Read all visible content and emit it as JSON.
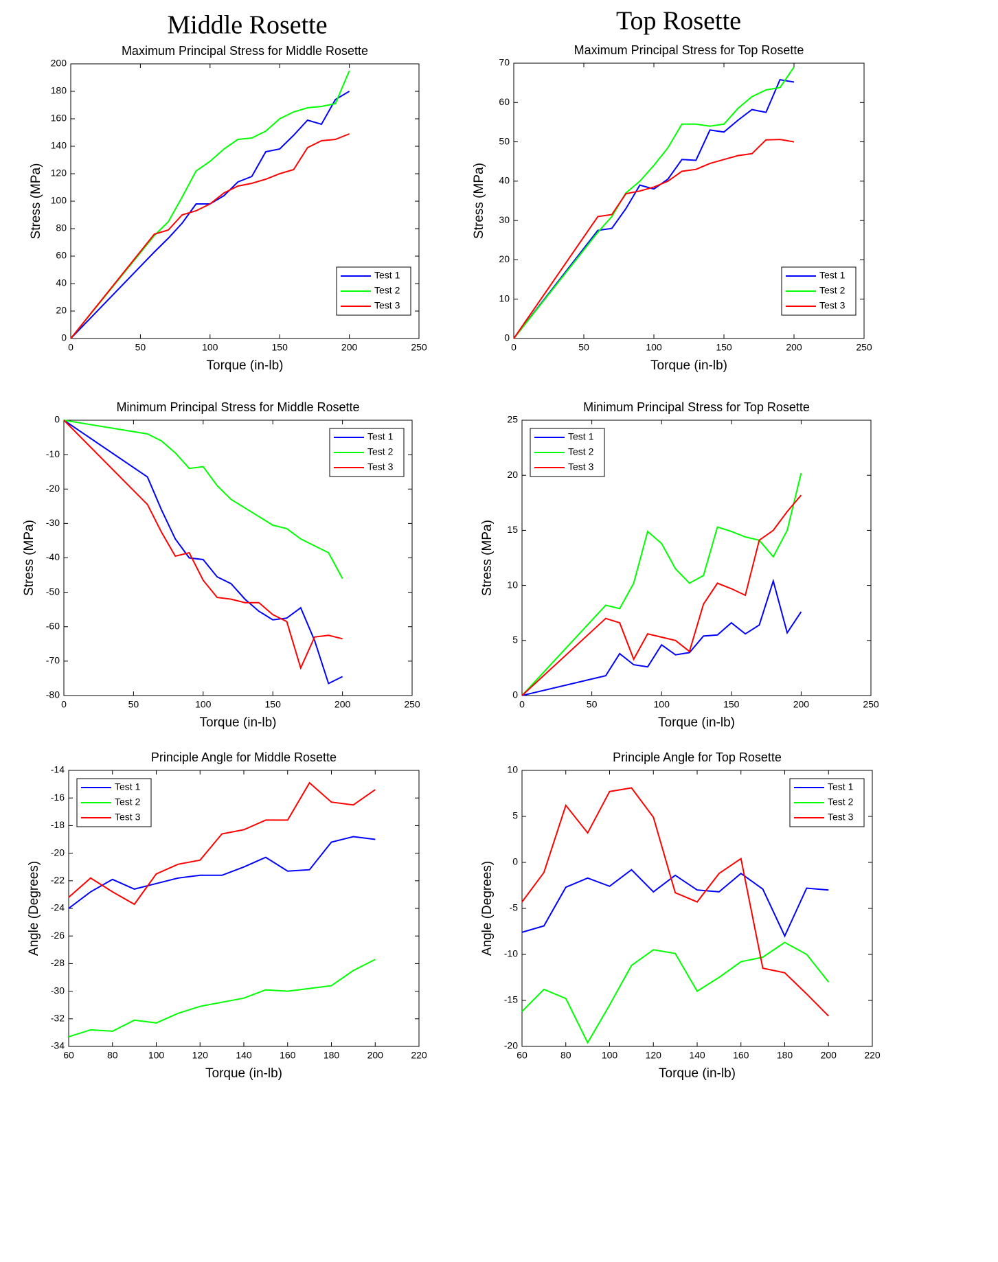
{
  "headings": [
    "Middle Rosette",
    "Top Rosette"
  ],
  "chart_data": [
    {
      "type": "line",
      "title": "Maximum Principal Stress for Middle Rosette",
      "xlabel": "Torque (in-lb)",
      "ylabel": "Stress (MPa)",
      "x": [
        0,
        60,
        70,
        80,
        90,
        100,
        110,
        120,
        130,
        140,
        150,
        160,
        170,
        180,
        190,
        200
      ],
      "series": [
        {
          "name": "Test 1",
          "color": "#0000ff",
          "values": [
            0,
            63,
            73,
            84,
            98,
            98,
            104,
            114,
            118,
            136,
            138,
            148,
            159,
            156,
            174,
            180
          ]
        },
        {
          "name": "Test 2",
          "color": "#00ff00",
          "values": [
            0,
            75,
            85,
            103,
            122,
            129,
            138,
            145,
            146,
            151,
            160,
            165,
            168,
            169,
            171,
            195
          ]
        },
        {
          "name": "Test 3",
          "color": "#ff0000",
          "values": [
            0,
            76,
            79,
            90,
            93,
            98,
            106,
            111,
            113,
            116,
            120,
            123,
            139,
            144,
            145,
            149
          ]
        }
      ],
      "xlim": [
        0,
        250
      ],
      "xticks": [
        0,
        50,
        100,
        150,
        200,
        250
      ],
      "ylim": [
        0,
        200
      ],
      "yticks": [
        0,
        20,
        40,
        60,
        80,
        100,
        120,
        140,
        160,
        180,
        200
      ],
      "legend": "lower right"
    },
    {
      "type": "line",
      "title": "Maximum Principal Stress for Top Rosette",
      "xlabel": "Torque (in-lb)",
      "ylabel": "Stress (MPa)",
      "x": [
        0,
        60,
        70,
        80,
        90,
        100,
        110,
        120,
        130,
        140,
        150,
        160,
        170,
        180,
        190,
        200
      ],
      "series": [
        {
          "name": "Test 1",
          "color": "#0000ff",
          "values": [
            0,
            27.5,
            28,
            33,
            39,
            38,
            40.5,
            45.5,
            45.3,
            53,
            52.5,
            55.5,
            58.2,
            57.5,
            65.8,
            65.2
          ]
        },
        {
          "name": "Test 2",
          "color": "#00ff00",
          "values": [
            0,
            27,
            31,
            37,
            40,
            44,
            48.5,
            54.5,
            54.5,
            54,
            54.5,
            58.5,
            61.5,
            63.2,
            63.8,
            69
          ]
        },
        {
          "name": "Test 3",
          "color": "#ff0000",
          "values": [
            0,
            31,
            31.5,
            36.8,
            37.5,
            38.5,
            40,
            42.5,
            43,
            44.5,
            45.5,
            46.5,
            47,
            50.5,
            50.6,
            50
          ]
        }
      ],
      "xlim": [
        0,
        250
      ],
      "xticks": [
        0,
        50,
        100,
        150,
        200,
        250
      ],
      "ylim": [
        0,
        70
      ],
      "yticks": [
        0,
        10,
        20,
        30,
        40,
        50,
        60,
        70
      ],
      "legend": "lower right"
    },
    {
      "type": "line",
      "title": "Minimum Principal Stress for Middle Rosette",
      "xlabel": "Torque (in-lb)",
      "ylabel": "Stress (MPa)",
      "x": [
        0,
        60,
        70,
        80,
        90,
        100,
        110,
        120,
        130,
        140,
        150,
        160,
        170,
        180,
        190,
        200
      ],
      "series": [
        {
          "name": "Test 1",
          "color": "#0000ff",
          "values": [
            0,
            -16.5,
            -26,
            -34.5,
            -40,
            -40.5,
            -45.5,
            -47.5,
            -52,
            -55.5,
            -58,
            -57.5,
            -54.5,
            -64,
            -76.5,
            -74.5
          ]
        },
        {
          "name": "Test 2",
          "color": "#00ff00",
          "values": [
            0,
            -4,
            -6,
            -9.5,
            -14,
            -13.5,
            -19,
            -23,
            -25.5,
            -28,
            -30.5,
            -31.5,
            -34.5,
            -36.5,
            -38.5,
            -46
          ]
        },
        {
          "name": "Test 3",
          "color": "#ff0000",
          "values": [
            0,
            -24.5,
            -32.5,
            -39.5,
            -38.5,
            -46.5,
            -51.5,
            -52,
            -53,
            -53,
            -56.5,
            -58.5,
            -72,
            -63,
            -62.5,
            -63.5
          ]
        }
      ],
      "xlim": [
        0,
        250
      ],
      "xticks": [
        0,
        50,
        100,
        150,
        200,
        250
      ],
      "ylim": [
        -80,
        0
      ],
      "yticks": [
        -80,
        -70,
        -60,
        -50,
        -40,
        -30,
        -20,
        -10,
        0
      ],
      "legend": "upper right"
    },
    {
      "type": "line",
      "title": "Minimum Principal Stress for Top Rosette",
      "xlabel": "Torque (in-lb)",
      "ylabel": "Stress (MPa)",
      "x": [
        0,
        60,
        70,
        80,
        90,
        100,
        110,
        120,
        130,
        140,
        150,
        160,
        170,
        180,
        190,
        200
      ],
      "series": [
        {
          "name": "Test 1",
          "color": "#0000ff",
          "values": [
            0,
            1.8,
            3.8,
            2.8,
            2.6,
            4.6,
            3.7,
            3.9,
            5.4,
            5.5,
            6.6,
            5.6,
            6.4,
            10.4,
            5.7,
            7.6
          ]
        },
        {
          "name": "Test 2",
          "color": "#00ff00",
          "values": [
            0,
            8.2,
            7.9,
            10.2,
            14.9,
            13.8,
            11.5,
            10.2,
            10.9,
            15.3,
            14.9,
            14.4,
            14.1,
            12.6,
            15,
            20.2
          ]
        },
        {
          "name": "Test 3",
          "color": "#ff0000",
          "values": [
            0,
            7,
            6.6,
            3.3,
            5.6,
            5.3,
            5,
            4,
            8.3,
            10.2,
            9.7,
            9.1,
            14.1,
            15,
            16.7,
            18.2
          ]
        }
      ],
      "xlim": [
        0,
        250
      ],
      "xticks": [
        0,
        50,
        100,
        150,
        200,
        250
      ],
      "ylim": [
        0,
        25
      ],
      "yticks": [
        0,
        5,
        10,
        15,
        20,
        25
      ],
      "legend": "upper left"
    },
    {
      "type": "line",
      "title": "Principle Angle for Middle Rosette",
      "xlabel": "Torque (in-lb)",
      "ylabel": "Angle (Degrees)",
      "x": [
        60,
        70,
        80,
        90,
        100,
        110,
        120,
        130,
        140,
        150,
        160,
        170,
        180,
        190,
        200
      ],
      "series": [
        {
          "name": "Test 1",
          "color": "#0000ff",
          "values": [
            -24,
            -22.8,
            -21.9,
            -22.6,
            -22.2,
            -21.8,
            -21.6,
            -21.6,
            -21,
            -20.3,
            -21.3,
            -21.2,
            -19.2,
            -18.8,
            -19
          ]
        },
        {
          "name": "Test 2",
          "color": "#00ff00",
          "values": [
            -33.3,
            -32.8,
            -32.9,
            -32.1,
            -32.3,
            -31.6,
            -31.1,
            -30.8,
            -30.5,
            -29.9,
            -30,
            -29.8,
            -29.6,
            -28.5,
            -27.7
          ]
        },
        {
          "name": "Test 3",
          "color": "#ff0000",
          "values": [
            -23.2,
            -21.8,
            -22.8,
            -23.7,
            -21.5,
            -20.8,
            -20.5,
            -18.6,
            -18.3,
            -17.6,
            -17.6,
            -14.9,
            -16.3,
            -16.5,
            -15.4
          ]
        }
      ],
      "xlim": [
        60,
        220
      ],
      "xticks": [
        60,
        80,
        100,
        120,
        140,
        160,
        180,
        200,
        220
      ],
      "ylim": [
        -34,
        -14
      ],
      "yticks": [
        -34,
        -32,
        -30,
        -28,
        -26,
        -24,
        -22,
        -20,
        -18,
        -16,
        -14
      ],
      "legend": "upper left"
    },
    {
      "type": "line",
      "title": "Principle Angle for Top Rosette",
      "xlabel": "Torque (in-lb)",
      "ylabel": "Angle (Degrees)",
      "x": [
        60,
        70,
        80,
        90,
        100,
        110,
        120,
        130,
        140,
        150,
        160,
        170,
        180,
        190,
        200
      ],
      "series": [
        {
          "name": "Test 1",
          "color": "#0000ff",
          "values": [
            -7.6,
            -6.9,
            -2.7,
            -1.7,
            -2.6,
            -0.8,
            -3.2,
            -1.4,
            -3,
            -3.2,
            -1.2,
            -2.9,
            -8,
            -2.8,
            -3
          ]
        },
        {
          "name": "Test 2",
          "color": "#00ff00",
          "values": [
            -16.2,
            -13.8,
            -14.8,
            -19.6,
            -15.5,
            -11.2,
            -9.5,
            -9.9,
            -14,
            -12.5,
            -10.8,
            -10.3,
            -8.7,
            -10,
            -13
          ]
        },
        {
          "name": "Test 3",
          "color": "#ff0000",
          "values": [
            -4.3,
            -1.1,
            6.2,
            3.2,
            7.7,
            8.1,
            4.9,
            -3.3,
            -4.3,
            -1.2,
            0.4,
            -11.5,
            -12,
            -14.3,
            -16.7
          ]
        }
      ],
      "xlim": [
        60,
        220
      ],
      "xticks": [
        60,
        80,
        100,
        120,
        140,
        160,
        180,
        200,
        220
      ],
      "ylim": [
        -20,
        10
      ],
      "yticks": [
        -20,
        -15,
        -10,
        -5,
        0,
        5,
        10
      ],
      "legend": "upper right"
    }
  ]
}
